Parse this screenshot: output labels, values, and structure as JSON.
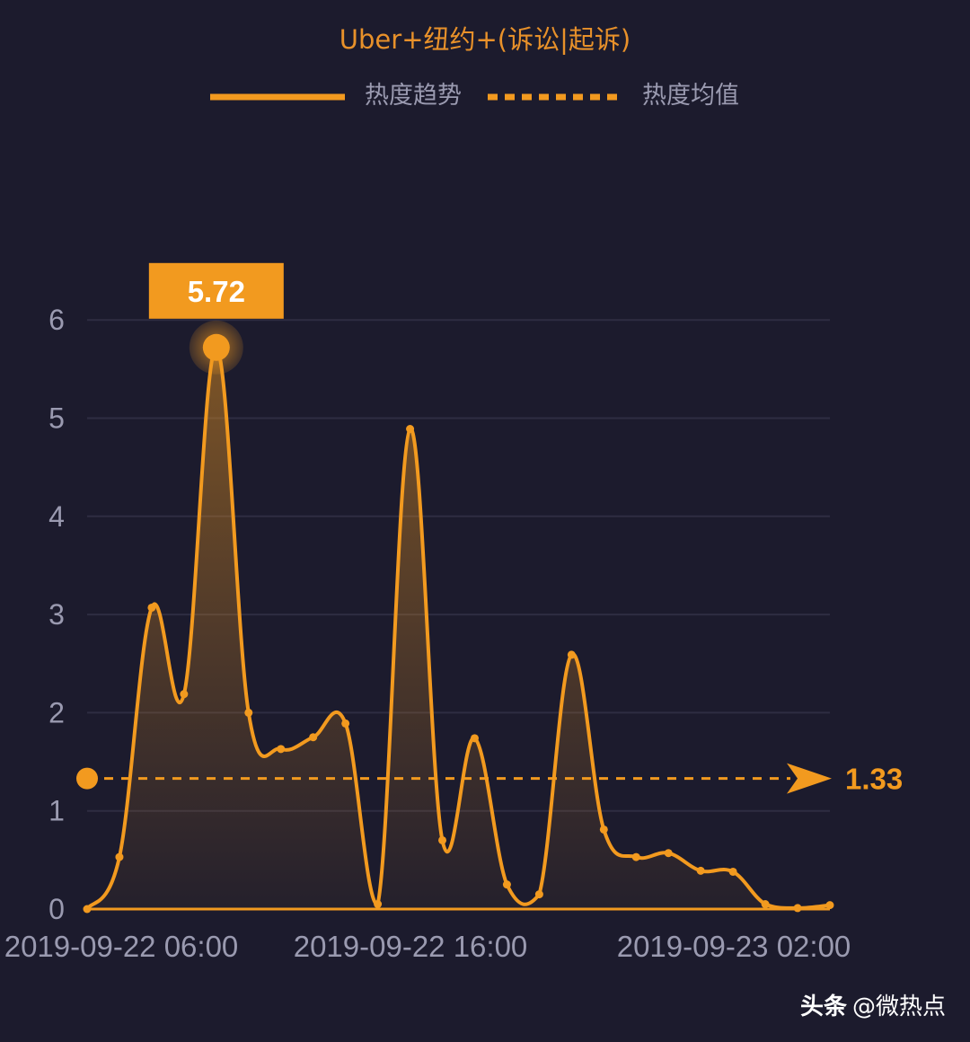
{
  "chart_data": {
    "type": "area",
    "title": "Uber+纽约+(诉讼|起诉)",
    "legend": {
      "position": "top-center",
      "items": [
        {
          "label": "热度趋势",
          "style": "solid"
        },
        {
          "label": "热度均值",
          "style": "dashed"
        }
      ]
    },
    "x_tick_labels": [
      "2019-09-22 06:00",
      "2019-09-22 16:00",
      "2019-09-23 02:00"
    ],
    "y_ticks": [
      0,
      1,
      2,
      3,
      4,
      5,
      6
    ],
    "ylim": [
      0,
      6
    ],
    "grid": "horizontal",
    "series": [
      {
        "name": "热度趋势",
        "values": [
          0,
          0.53,
          3.07,
          2.19,
          5.72,
          2.0,
          1.63,
          1.75,
          1.89,
          0.05,
          4.89,
          0.7,
          1.74,
          0.25,
          0.15,
          2.59,
          0.81,
          0.53,
          0.57,
          0.39,
          0.38,
          0.05,
          0.01,
          0.04
        ]
      }
    ],
    "peak": {
      "value": 5.72,
      "label": "5.72"
    },
    "average": {
      "value": 1.33,
      "label": "1.33"
    },
    "colors": {
      "line": "#f29a1f",
      "background": "#1c1b2d",
      "title": "#e8912a",
      "peak_box": "#f29a1f",
      "text": "#9a9ab0"
    }
  },
  "watermark": {
    "brand": "头条",
    "handle": "@微热点"
  }
}
